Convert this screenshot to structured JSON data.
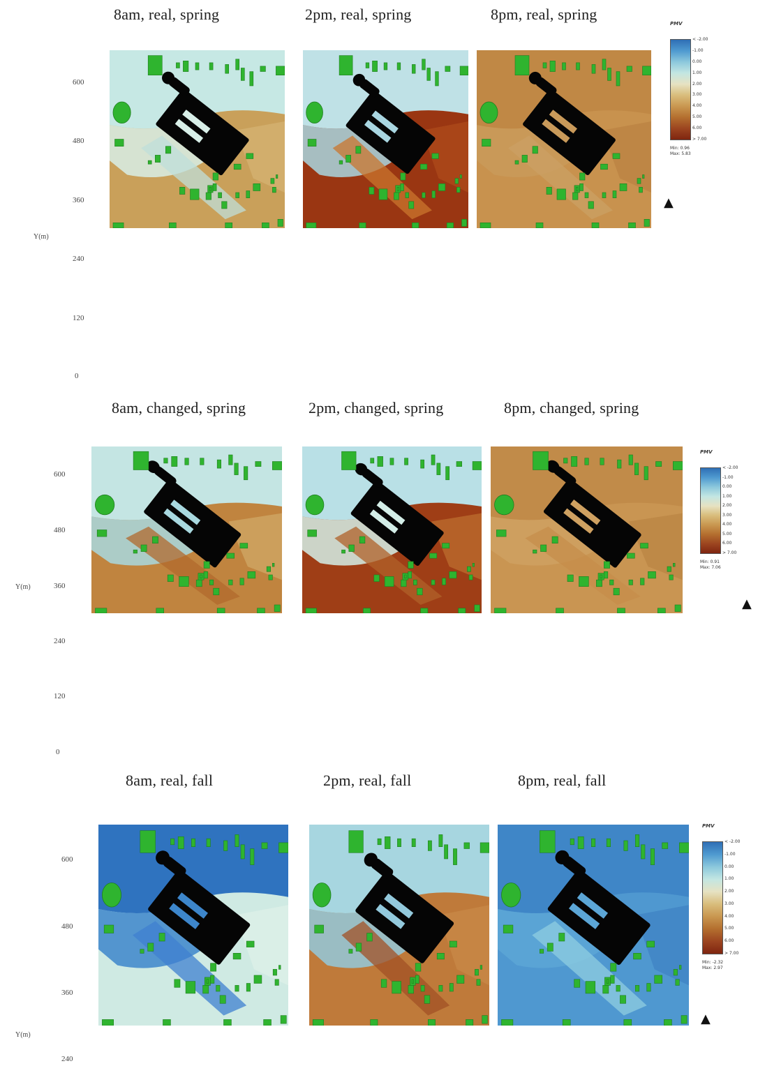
{
  "chart_data": [
    {
      "type": "heatmap",
      "season": "spring",
      "unit_label": "PMV",
      "y_axis_label": "Y(m)",
      "y_ticks": [
        "600",
        "480",
        "360",
        "240",
        "120",
        "0"
      ],
      "panels": [
        {
          "title": "8am, real, spring",
          "scheme": "spring_real_8am"
        },
        {
          "title": "2pm, real, spring",
          "scheme": "spring_real_2pm"
        },
        {
          "title": "8pm, real, spring",
          "scheme": "spring_real_8pm"
        }
      ],
      "legend": {
        "labels": [
          "< -2.00",
          "-1.00",
          "0.00",
          "1.00",
          "2.00",
          "3.00",
          "4.00",
          "5.00",
          "6.00",
          "> 7.00"
        ],
        "min": "Min: 0.96",
        "max": "Max: 5.83"
      }
    },
    {
      "type": "heatmap",
      "season": "spring",
      "unit_label": "PMV",
      "y_axis_label": "Y(m)",
      "y_ticks": [
        "600",
        "480",
        "360",
        "240",
        "120",
        "0"
      ],
      "panels": [
        {
          "title": "8am, changed, spring",
          "scheme": "spring_changed_8am"
        },
        {
          "title": "2pm, changed, spring",
          "scheme": "spring_changed_2pm"
        },
        {
          "title": "8pm, changed, spring",
          "scheme": "spring_changed_8pm"
        }
      ],
      "legend": {
        "labels": [
          "< -2.00",
          "-1.00",
          "0.00",
          "1.00",
          "2.00",
          "3.00",
          "4.00",
          "5.00",
          "6.00",
          "> 7.00"
        ],
        "min": "Min: 0.91",
        "max": "Max: 7.06"
      }
    },
    {
      "type": "heatmap",
      "season": "fall",
      "unit_label": "PMV",
      "y_axis_label": "Y(m)",
      "y_ticks": [
        "600",
        "480",
        "360",
        "240"
      ],
      "panels": [
        {
          "title": "8am, real, fall",
          "scheme": "fall_real_8am"
        },
        {
          "title": "2pm, real, fall",
          "scheme": "fall_real_2pm"
        },
        {
          "title": "8pm, real, fall",
          "scheme": "fall_real_8pm"
        }
      ],
      "legend": {
        "labels": [
          "< -2.00",
          "-1.00",
          "0.00",
          "1.00",
          "2.00",
          "3.00",
          "4.00",
          "5.00",
          "6.00",
          "> 7.00"
        ],
        "min": "Min: -2.32",
        "max": "Max: 2.97"
      }
    }
  ],
  "colors": {
    "building": "#050505",
    "vegetation": "#2fb42f",
    "colorscale": [
      "#2f6fb5",
      "#4f9ad0",
      "#8cc8dc",
      "#c3e6e2",
      "#e6e2c2",
      "#d9bd7c",
      "#c99750",
      "#b46f2f",
      "#9c4520",
      "#7f2510"
    ]
  },
  "north_symbol": "▲"
}
